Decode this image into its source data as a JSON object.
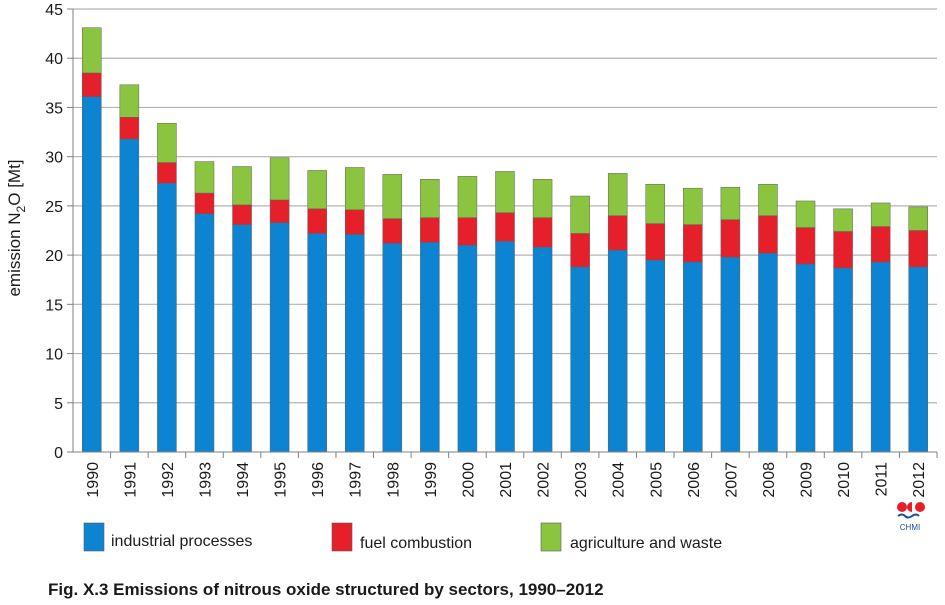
{
  "caption": "Fig. X.3  Emissions of nitrous oxide structured by sectors, 1990–2012",
  "logo_text": "CHMI",
  "colors": {
    "industrial": "#0c84d1",
    "fuel": "#e6202a",
    "agriculture": "#8bc53f",
    "grid": "#b3b3b3",
    "axis": "#808080"
  },
  "chart_data": {
    "type": "bar",
    "stacked": true,
    "categories": [
      "1990",
      "1991",
      "1992",
      "1993",
      "1994",
      "1995",
      "1996",
      "1997",
      "1998",
      "1999",
      "2000",
      "2001",
      "2002",
      "2003",
      "2004",
      "2005",
      "2006",
      "2007",
      "2008",
      "2009",
      "2010",
      "2011",
      "2012"
    ],
    "series": [
      {
        "name": "industrial processes",
        "color": "#0c84d1",
        "values": [
          36.1,
          31.8,
          27.3,
          24.2,
          23.1,
          23.3,
          22.2,
          22.1,
          21.2,
          21.3,
          21.0,
          21.4,
          20.8,
          18.8,
          20.5,
          19.5,
          19.3,
          19.8,
          20.2,
          19.1,
          18.7,
          19.3,
          18.8
        ]
      },
      {
        "name": "fuel combustion",
        "color": "#e6202a",
        "values": [
          2.4,
          2.2,
          2.1,
          2.1,
          2.0,
          2.3,
          2.5,
          2.5,
          2.5,
          2.5,
          2.8,
          2.9,
          3.0,
          3.4,
          3.5,
          3.7,
          3.8,
          3.8,
          3.8,
          3.7,
          3.7,
          3.6,
          3.7
        ]
      },
      {
        "name": "agriculture and waste",
        "color": "#8bc53f",
        "values": [
          4.6,
          3.3,
          4.0,
          3.2,
          3.9,
          4.3,
          3.9,
          4.3,
          4.5,
          3.9,
          4.2,
          4.2,
          3.9,
          3.8,
          4.3,
          4.0,
          3.7,
          3.3,
          3.2,
          2.7,
          2.3,
          2.4,
          2.4
        ]
      }
    ],
    "title": "",
    "xlabel": "",
    "ylabel": "emission N2O [Mt]",
    "ylabel_parts": [
      "emission N",
      "2",
      "O [Mt]"
    ],
    "ylim": [
      0,
      45
    ],
    "yticks": [
      "0",
      "5",
      "10",
      "15",
      "20",
      "25",
      "30",
      "35",
      "40",
      "45"
    ],
    "grid": true,
    "legend_position": "bottom"
  }
}
